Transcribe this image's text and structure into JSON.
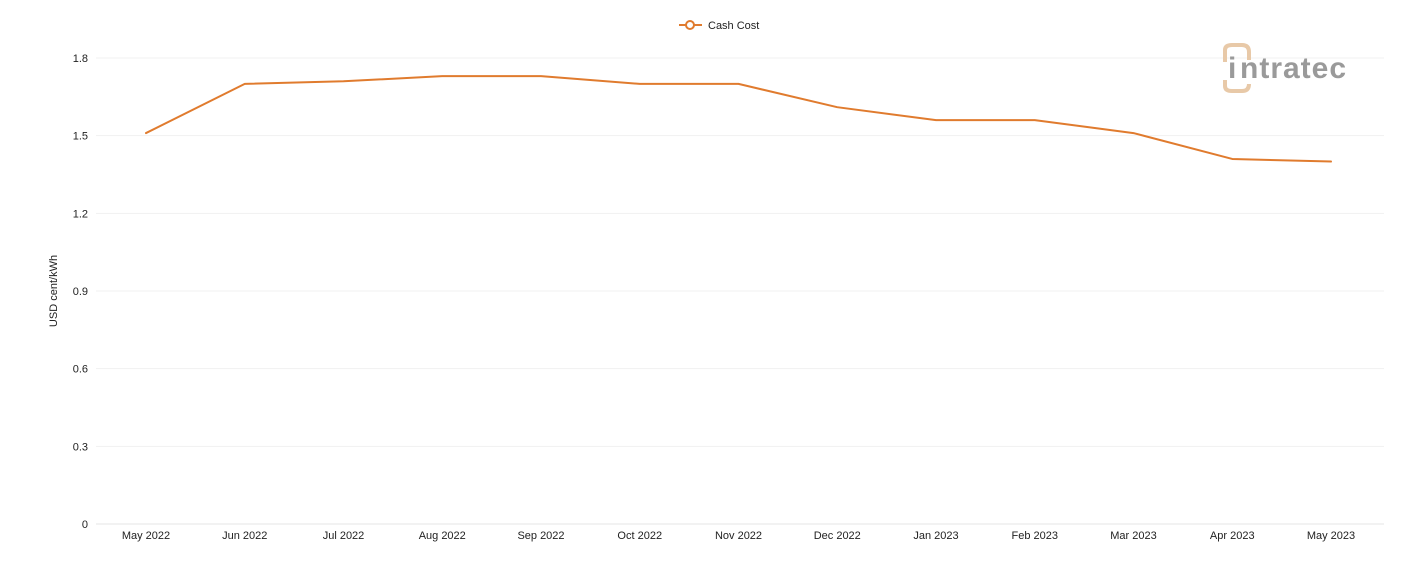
{
  "chart_data": {
    "type": "line",
    "categories": [
      "May 2022",
      "Jun 2022",
      "Jul 2022",
      "Aug 2022",
      "Sep 2022",
      "Oct 2022",
      "Nov 2022",
      "Dec 2022",
      "Jan 2023",
      "Feb 2023",
      "Mar 2023",
      "Apr 2023",
      "May 2023"
    ],
    "series": [
      {
        "name": "Cash Cost",
        "color": "#E07B2E",
        "values": [
          1.51,
          1.7,
          1.71,
          1.73,
          1.73,
          1.7,
          1.7,
          1.61,
          1.56,
          1.56,
          1.51,
          1.41,
          1.4
        ]
      }
    ],
    "ylabel": "USD cent/kWh",
    "xlabel": "",
    "ylim": [
      0,
      1.8
    ],
    "yticks": [
      "0",
      "0.3",
      "0.6",
      "0.9",
      "1.2",
      "1.5",
      "1.8"
    ],
    "grid": true,
    "legend_position": "top-center"
  },
  "watermark": {
    "text": "intratec",
    "first_letter": "i",
    "rest": "ntratec",
    "colors": {
      "text": "#9a9a9a",
      "accent": "#e8c9a8"
    }
  }
}
